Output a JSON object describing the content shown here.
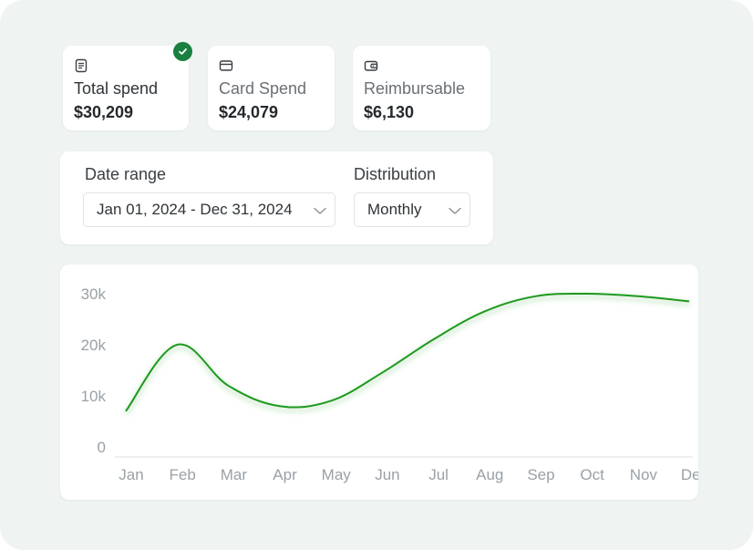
{
  "stats": [
    {
      "label": "Total spend",
      "value": "$30,209",
      "icon": "receipt-icon",
      "selected": true
    },
    {
      "label": "Card Spend",
      "value": "$24,079",
      "icon": "credit-card-icon",
      "selected": false
    },
    {
      "label": "Reimbursable",
      "value": "$6,130",
      "icon": "wallet-icon",
      "selected": false
    }
  ],
  "filters": {
    "date_range_label": "Date range",
    "date_range_value": "Jan 01, 2024 - Dec 31, 2024",
    "distribution_label": "Distribution",
    "distribution_value": "Monthly"
  },
  "colors": {
    "accent": "#19803f",
    "line": "#1e9a1e",
    "background": "#eff4f3"
  },
  "chart_data": {
    "type": "line",
    "categories": [
      "Jan",
      "Feb",
      "Mar",
      "Apr",
      "May",
      "Jun",
      "Jul",
      "Aug",
      "Sep",
      "Oct",
      "Nov",
      "Dec"
    ],
    "series": [
      {
        "values": [
          7000,
          20000,
          12000,
          8000,
          9000,
          14500,
          21000,
          26500,
          29500,
          30000,
          29500,
          28500
        ]
      }
    ],
    "yticks": [
      "0",
      "10k",
      "20k",
      "30k"
    ],
    "ylim": [
      0,
      30000
    ],
    "grid": false
  }
}
